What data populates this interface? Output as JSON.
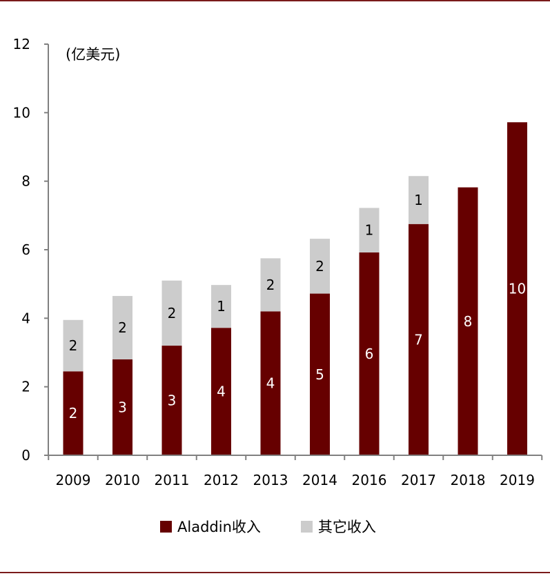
{
  "chart_data": {
    "type": "bar",
    "stacked": true,
    "unit_label": "(亿美元)",
    "categories": [
      "2009",
      "2010",
      "2011",
      "2012",
      "2013",
      "2014",
      "2016",
      "2017",
      "2018",
      "2019"
    ],
    "series": [
      {
        "name": "Aladdin收入",
        "color": "#660000",
        "values": [
          2.45,
          2.8,
          3.2,
          3.72,
          4.2,
          4.72,
          5.92,
          6.75,
          7.82,
          9.72
        ],
        "labels": [
          "2",
          "3",
          "3",
          "4",
          "4",
          "5",
          "6",
          "7",
          "8",
          "10"
        ]
      },
      {
        "name": "其它收入",
        "color": "#cccccc",
        "values": [
          1.5,
          1.85,
          1.9,
          1.25,
          1.55,
          1.6,
          1.3,
          1.4,
          null,
          null
        ],
        "labels": [
          "2",
          "2",
          "2",
          "1",
          "2",
          "2",
          "1",
          "1",
          "",
          ""
        ]
      }
    ],
    "ylim": [
      0,
      12
    ],
    "yticks": [
      0,
      2,
      4,
      6,
      8,
      10,
      12
    ],
    "grid": false,
    "legend_position": "bottom-center"
  },
  "legend": {
    "aladdin": "Aladdin收入",
    "other": "其它收入"
  }
}
